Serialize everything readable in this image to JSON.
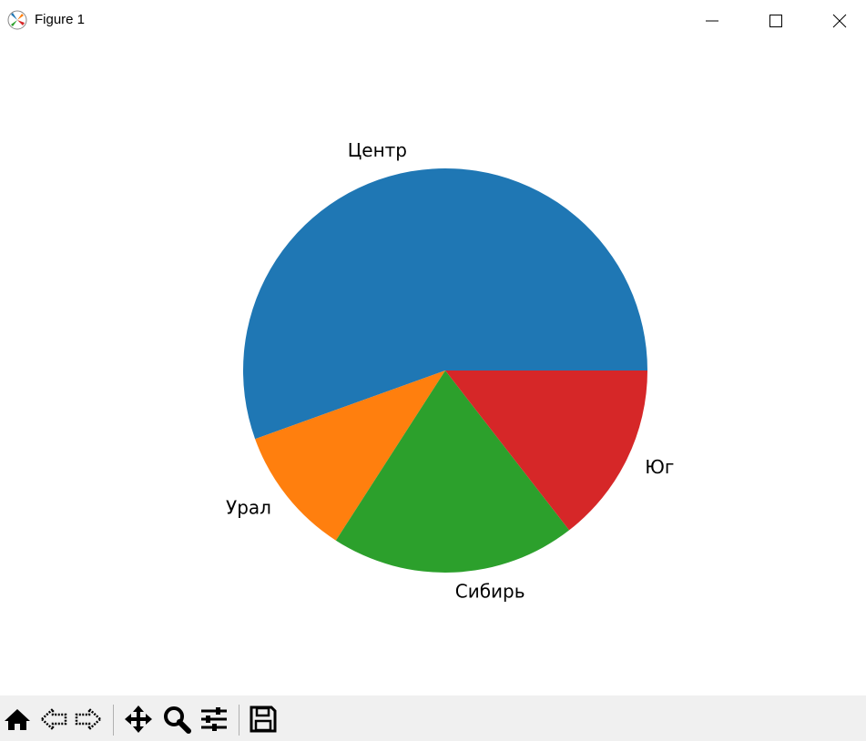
{
  "window": {
    "title": "Figure 1",
    "controls": [
      "minimize",
      "maximize",
      "close"
    ]
  },
  "toolbar": {
    "buttons": [
      "home-icon",
      "back-icon",
      "forward-icon",
      "pan-icon",
      "zoom-icon",
      "configure-subplots-icon",
      "save-icon"
    ]
  },
  "chart_data": {
    "type": "pie",
    "labels": [
      "Центр",
      "Урал",
      "Сибирь",
      "Юг"
    ],
    "values": [
      55.5,
      10.4,
      19.6,
      14.5
    ],
    "colors": [
      "#1f77b4",
      "#ff7f0e",
      "#2ca02c",
      "#d62728"
    ],
    "start_angle": 0,
    "direction": "counterclockwise"
  }
}
